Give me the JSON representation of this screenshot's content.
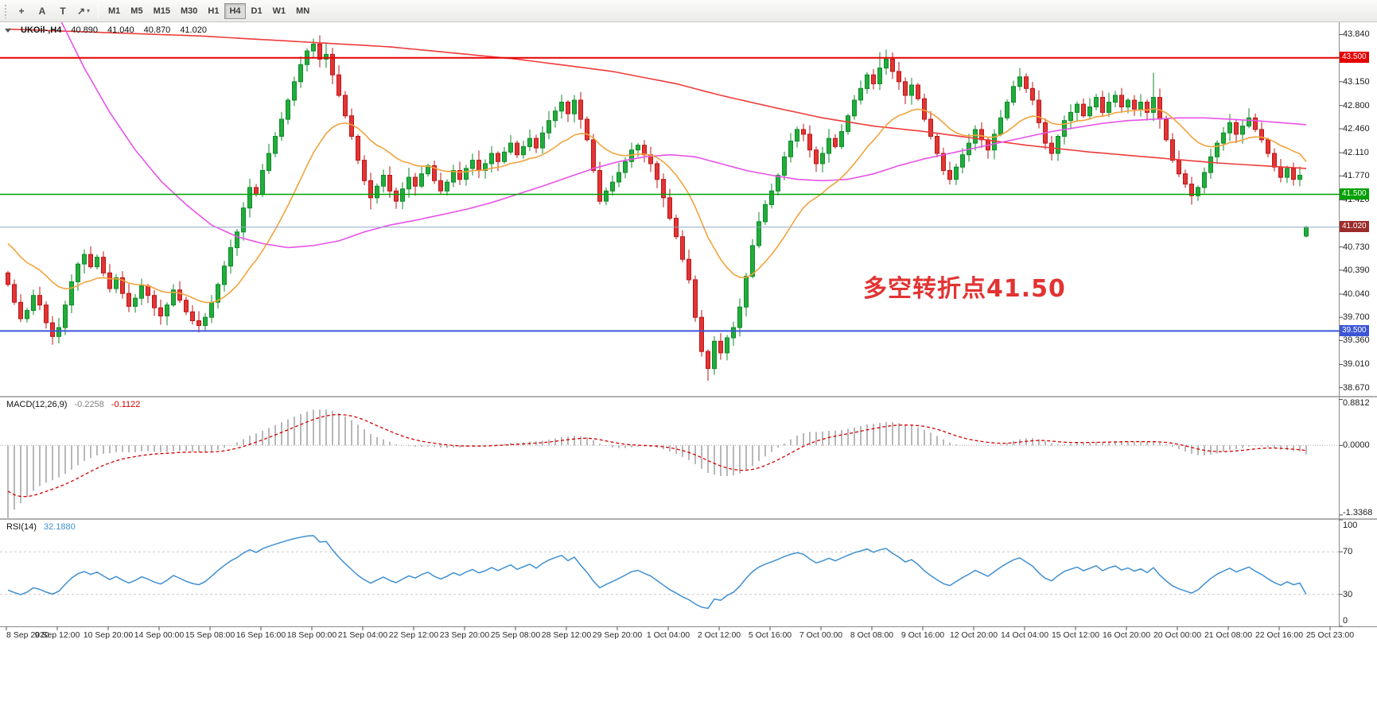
{
  "toolbar": {
    "tools": [
      {
        "name": "crosshair-tool-button",
        "glyph": "+"
      },
      {
        "name": "text-tool-button",
        "glyph": "A"
      },
      {
        "name": "label-tool-button",
        "glyph": "T"
      },
      {
        "name": "objects-dropdown-button",
        "glyph": "↗",
        "caret": true
      }
    ],
    "timeframes": [
      "M1",
      "M5",
      "M15",
      "M30",
      "H1",
      "H4",
      "D1",
      "W1",
      "MN"
    ],
    "selected_timeframe": "H4"
  },
  "chart": {
    "title": "UKOil-,H4",
    "ohlc": {
      "open": "40.890",
      "high": "41.040",
      "low": "40.870",
      "close": "41.020"
    },
    "annotation": {
      "text": "多空转折点41.50",
      "color": "#e23333"
    },
    "levels": [
      {
        "label": "43.500",
        "price": 43.5,
        "color": "#e60000",
        "width": 2
      },
      {
        "label": "41.500",
        "price": 41.5,
        "color": "#00a000",
        "width": 1.6
      },
      {
        "label": "39.500",
        "price": 39.5,
        "color": "#3c56d6",
        "width": 2
      }
    ],
    "current": {
      "label": "41.020",
      "price": 41.02,
      "line_color": "#8fa8c8",
      "box_color": "#9c2b2b"
    }
  },
  "chart_data": {
    "type": "candlestick",
    "symbol": "UKOil-",
    "timeframe": "H4",
    "price_range": [
      38.55,
      44.02
    ],
    "y_ticks": [
      [
        "43.840",
        43.84
      ],
      [
        "43.150",
        43.15
      ],
      [
        "42.800",
        42.8
      ],
      [
        "42.460",
        42.46
      ],
      [
        "42.110",
        42.11
      ],
      [
        "41.770",
        41.77
      ],
      [
        "41.420",
        41.42
      ],
      [
        "40.730",
        40.73
      ],
      [
        "40.390",
        40.39
      ],
      [
        "40.040",
        40.04
      ],
      [
        "39.700",
        39.7
      ],
      [
        "39.360",
        39.36
      ],
      [
        "39.010",
        39.01
      ],
      [
        "38.670",
        38.67
      ]
    ],
    "time_labels": [
      "8 Sep 2020",
      "9 Sep 12:00",
      "10 Sep 20:00",
      "14 Sep 00:00",
      "15 Sep 08:00",
      "16 Sep 16:00",
      "18 Sep 00:00",
      "21 Sep 04:00",
      "22 Sep 12:00",
      "23 Sep 20:00",
      "25 Sep 08:00",
      "28 Sep 12:00",
      "29 Sep 20:00",
      "1 Oct 04:00",
      "2 Oct 12:00",
      "5 Oct 16:00",
      "7 Oct 00:00",
      "8 Oct 08:00",
      "9 Oct 16:00",
      "12 Oct 20:00",
      "14 Oct 04:00",
      "15 Oct 12:00",
      "16 Oct 20:00",
      "20 Oct 00:00",
      "21 Oct 08:00",
      "22 Oct 16:00",
      "25 Oct 23:00"
    ],
    "closes": [
      40.18,
      39.92,
      39.68,
      39.8,
      40.02,
      39.88,
      39.62,
      39.42,
      39.55,
      39.88,
      40.22,
      40.48,
      40.62,
      40.44,
      40.58,
      40.35,
      40.12,
      40.28,
      40.05,
      39.86,
      39.98,
      40.16,
      40.02,
      39.84,
      39.72,
      39.88,
      40.1,
      39.95,
      39.78,
      39.65,
      39.58,
      39.7,
      39.92,
      40.18,
      40.45,
      40.72,
      40.95,
      41.3,
      41.6,
      41.5,
      41.85,
      42.1,
      42.35,
      42.6,
      42.88,
      43.15,
      43.4,
      43.6,
      43.7,
      43.48,
      43.55,
      43.25,
      42.95,
      42.65,
      42.35,
      42.0,
      41.7,
      41.45,
      41.62,
      41.78,
      41.55,
      41.4,
      41.58,
      41.75,
      41.62,
      41.8,
      41.92,
      41.7,
      41.55,
      41.68,
      41.85,
      41.72,
      41.88,
      42.0,
      41.85,
      41.95,
      42.1,
      41.98,
      42.12,
      42.25,
      42.08,
      42.2,
      42.32,
      42.18,
      42.4,
      42.58,
      42.72,
      42.85,
      42.68,
      42.88,
      42.6,
      42.3,
      41.85,
      41.4,
      41.55,
      41.68,
      41.82,
      41.98,
      42.15,
      42.22,
      42.08,
      41.95,
      41.72,
      41.45,
      41.15,
      40.88,
      40.55,
      40.25,
      39.7,
      39.2,
      38.95,
      39.35,
      39.18,
      39.4,
      39.55,
      39.85,
      40.3,
      40.75,
      41.1,
      41.35,
      41.55,
      41.78,
      42.05,
      42.28,
      42.45,
      42.38,
      42.15,
      41.95,
      42.1,
      42.32,
      42.2,
      42.42,
      42.65,
      42.88,
      43.05,
      43.25,
      43.12,
      43.35,
      43.48,
      43.3,
      43.15,
      42.95,
      43.1,
      42.9,
      42.6,
      42.35,
      42.1,
      41.85,
      41.72,
      41.9,
      42.08,
      42.25,
      42.45,
      42.3,
      42.15,
      42.38,
      42.62,
      42.85,
      43.08,
      43.22,
      43.05,
      42.88,
      42.55,
      42.25,
      42.1,
      42.35,
      42.58,
      42.7,
      42.82,
      42.65,
      42.78,
      42.92,
      42.7,
      42.85,
      42.95,
      42.78,
      42.88,
      42.75,
      42.85,
      42.7,
      42.92,
      42.6,
      42.3,
      42.0,
      41.8,
      41.65,
      41.48,
      41.6,
      41.82,
      42.05,
      42.25,
      42.4,
      42.55,
      42.38,
      42.5,
      42.62,
      42.45,
      42.3,
      42.1,
      41.9,
      41.75,
      41.88,
      41.72,
      41.78,
      41.02
    ],
    "open_overrides": {
      "0": 40.35,
      "204": 40.89
    },
    "wick_overrides": {
      "7": {
        "l": 39.3
      },
      "30": {
        "l": 39.48
      },
      "48": {
        "h": 43.78
      },
      "50": {
        "h": 43.72
      },
      "57": {
        "l": 41.28
      },
      "110": {
        "l": 38.77
      },
      "137": {
        "h": 43.58
      },
      "138": {
        "h": 43.62
      },
      "159": {
        "h": 43.35
      },
      "180": {
        "h": 43.28
      },
      "186": {
        "l": 41.35
      },
      "204": {
        "h": 41.04,
        "l": 40.87
      }
    },
    "ma_slow_anchors": [
      [
        0,
        43.92
      ],
      [
        30,
        43.82
      ],
      [
        60,
        43.66
      ],
      [
        80,
        43.48
      ],
      [
        95,
        43.3
      ],
      [
        105,
        43.12
      ],
      [
        112,
        42.95
      ],
      [
        120,
        42.78
      ],
      [
        128,
        42.62
      ],
      [
        136,
        42.5
      ],
      [
        144,
        42.42
      ],
      [
        152,
        42.32
      ],
      [
        160,
        42.22
      ],
      [
        170,
        42.12
      ],
      [
        180,
        42.04
      ],
      [
        190,
        41.96
      ],
      [
        204,
        41.88
      ]
    ],
    "ma_mid_anchors": [
      [
        0,
        45.8
      ],
      [
        4,
        44.9
      ],
      [
        8,
        44.1
      ],
      [
        12,
        43.35
      ],
      [
        16,
        42.7
      ],
      [
        20,
        42.15
      ],
      [
        24,
        41.7
      ],
      [
        28,
        41.35
      ],
      [
        32,
        41.05
      ],
      [
        36,
        40.88
      ],
      [
        40,
        40.78
      ],
      [
        44,
        40.72
      ],
      [
        48,
        40.75
      ],
      [
        52,
        40.82
      ],
      [
        56,
        40.95
      ],
      [
        60,
        41.05
      ],
      [
        64,
        41.12
      ],
      [
        68,
        41.2
      ],
      [
        72,
        41.28
      ],
      [
        76,
        41.38
      ],
      [
        80,
        41.5
      ],
      [
        84,
        41.62
      ],
      [
        88,
        41.75
      ],
      [
        92,
        41.88
      ],
      [
        96,
        41.98
      ],
      [
        100,
        42.05
      ],
      [
        104,
        42.08
      ],
      [
        108,
        42.05
      ],
      [
        112,
        41.95
      ],
      [
        116,
        41.85
      ],
      [
        120,
        41.78
      ],
      [
        124,
        41.72
      ],
      [
        128,
        41.7
      ],
      [
        132,
        41.72
      ],
      [
        136,
        41.8
      ],
      [
        140,
        41.92
      ],
      [
        144,
        42.02
      ],
      [
        148,
        42.1
      ],
      [
        152,
        42.18
      ],
      [
        156,
        42.26
      ],
      [
        160,
        42.34
      ],
      [
        164,
        42.42
      ],
      [
        168,
        42.48
      ],
      [
        172,
        42.54
      ],
      [
        176,
        42.58
      ],
      [
        180,
        42.6
      ],
      [
        184,
        42.62
      ],
      [
        188,
        42.62
      ],
      [
        192,
        42.6
      ],
      [
        196,
        42.58
      ],
      [
        200,
        42.55
      ],
      [
        204,
        42.52
      ]
    ],
    "macd": {
      "label": "MACD(12,26,9)",
      "value_main": "-0.2258",
      "value_signal": "-0.1122",
      "axis_top": "0.8812",
      "axis_zero": "0.0000",
      "axis_bottom": "-1.3368",
      "range": [
        -1.4,
        0.92
      ]
    },
    "rsi": {
      "label": "RSI(14)",
      "value": "32.1880",
      "axis": [
        "100",
        "70",
        "30",
        "0"
      ],
      "levels": [
        70,
        30
      ]
    },
    "colors": {
      "up": "#21ad3c",
      "up_border": "#0f8a28",
      "down": "#e23535",
      "down_border": "#bb1616",
      "ma_fast": "#f2a33c",
      "ma_mid": "#e852e8",
      "ma_slow": "#ef3b3b",
      "macd_hist": "#b8b8b8",
      "macd_signal": "#d40000",
      "rsi": "#3f8fd2"
    }
  }
}
